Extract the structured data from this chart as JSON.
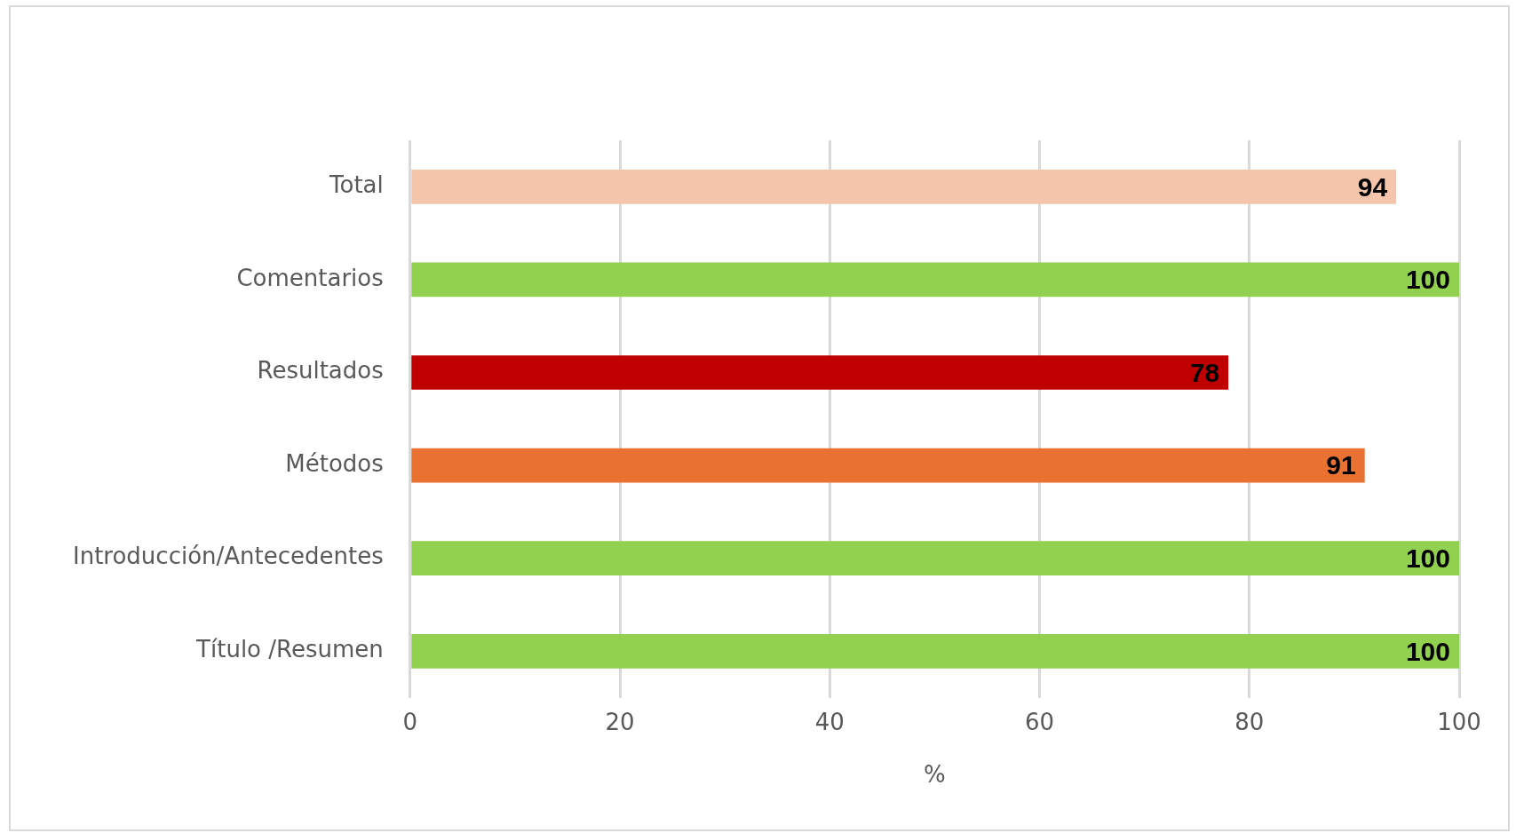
{
  "chart_data": {
    "type": "bar",
    "orientation": "horizontal",
    "categories": [
      "Total",
      "Comentarios",
      "Resultados",
      "Métodos",
      "Introducción/Antecedentes",
      "Título /Resumen"
    ],
    "values": [
      94,
      100,
      78,
      91,
      100,
      100
    ],
    "colors": [
      "#f4c4ab",
      "#92d050",
      "#c00000",
      "#e97132",
      "#92d050",
      "#92d050"
    ],
    "xlim": [
      0,
      100
    ],
    "xticks": [
      0,
      20,
      40,
      60,
      80,
      100
    ],
    "xlabel": "%",
    "grid": "x",
    "data_labels": true
  }
}
